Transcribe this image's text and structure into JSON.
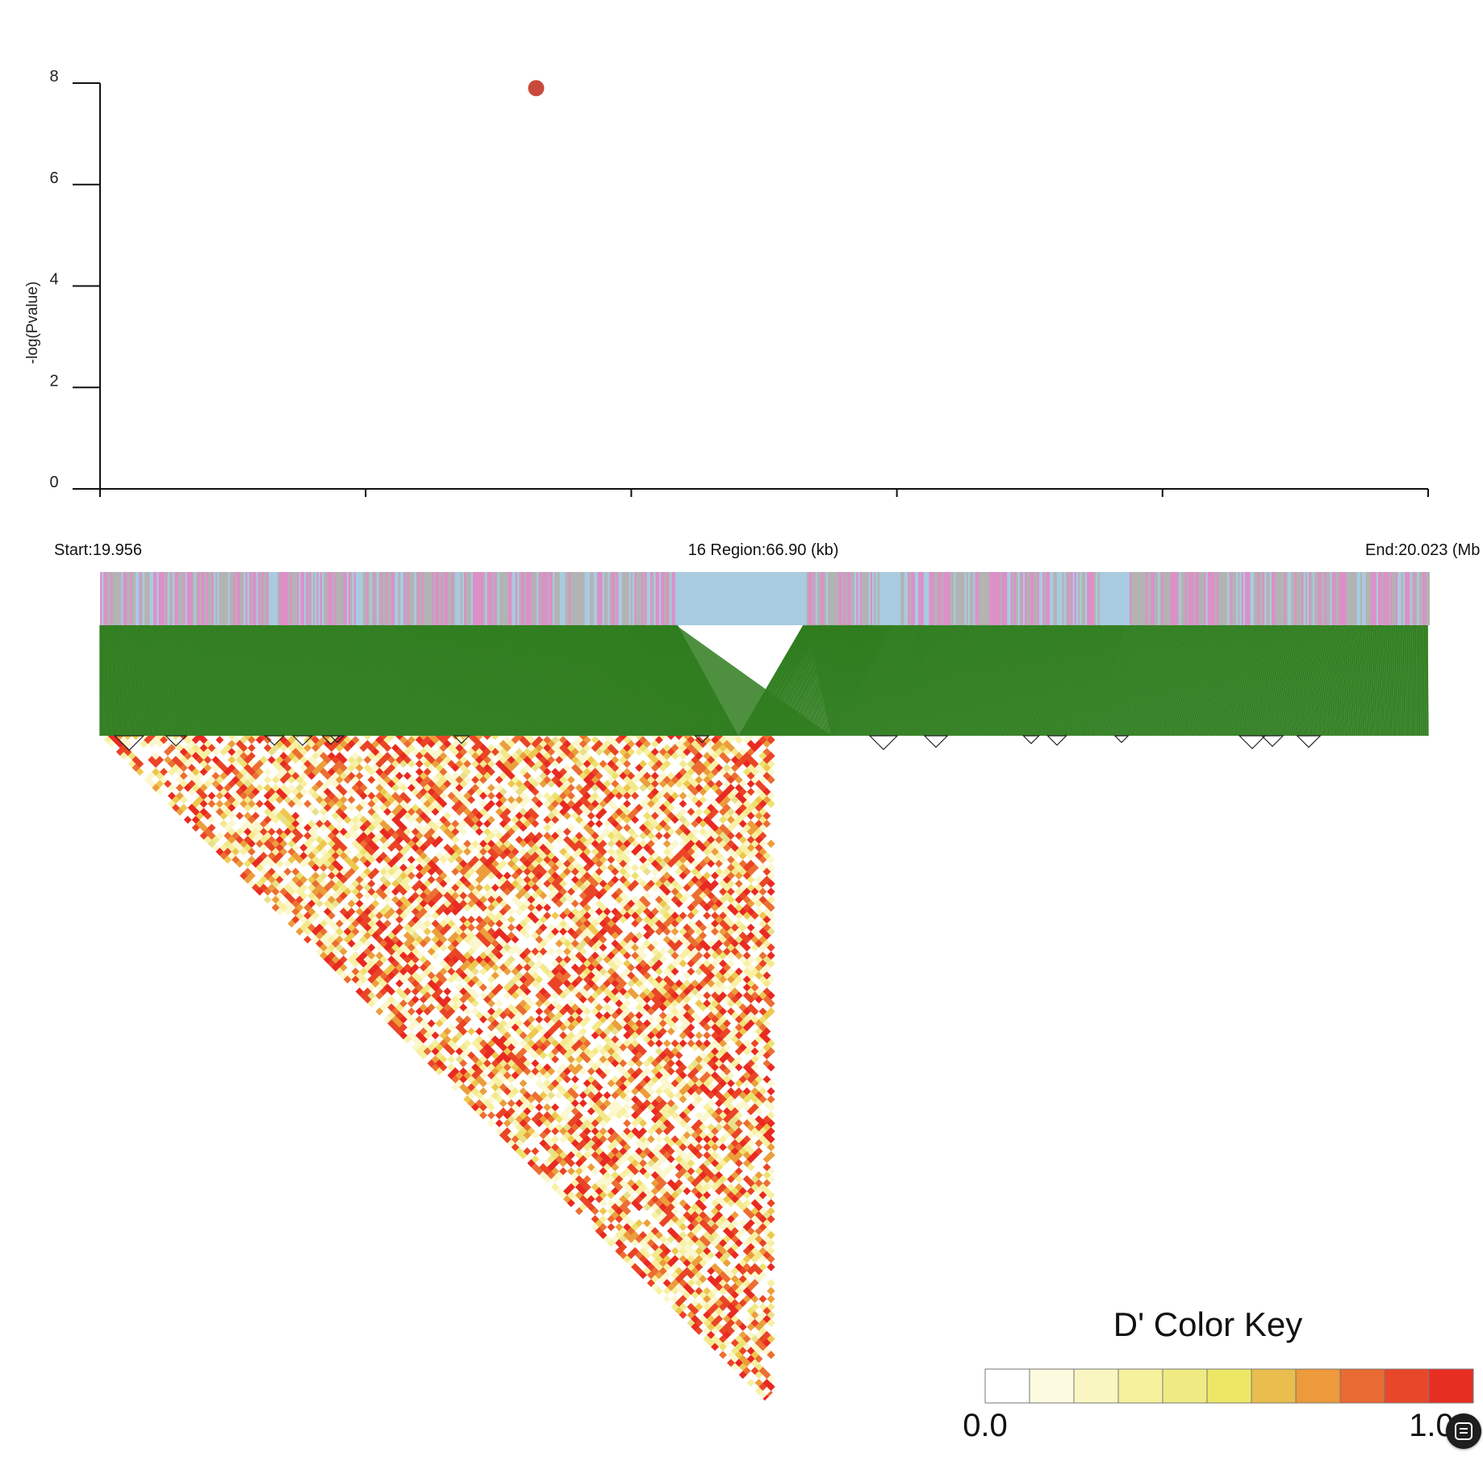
{
  "chart_data": [
    {
      "type": "scatter",
      "ylabel": "-log(Pvalue)",
      "xlabel": "",
      "ylim": [
        0,
        8
      ],
      "yticks": [
        "0",
        "2",
        "4",
        "6",
        "8"
      ],
      "xlim": [
        19.956,
        20.023
      ],
      "x_major_ticks": 6,
      "points": [
        {
          "x": 19.978,
          "y": 7.9
        }
      ],
      "point_color": "#c84a3c",
      "grid": false
    },
    {
      "type": "heatmap",
      "subtype": "LD triangle (D')",
      "start_label": "Start:19.956",
      "region_label": "16 Region:66.90 (kb)",
      "end_label": "End:20.023 (Mb",
      "gene_track_colors": [
        "#a9cbe0",
        "#dd8fc8",
        "#b3b3b3"
      ],
      "snp_link_color": "#2f7d1f",
      "cell_colors": [
        "#ffffff",
        "#fbf7cf",
        "#f8f0a3",
        "#f3e98c",
        "#ede26e",
        "#eec84e",
        "#ec9e3c",
        "#ec6e32",
        "#ea4426",
        "#e82a22",
        "#e8e08a"
      ],
      "color_key": {
        "title": "D' Color Key",
        "min_label": "0.0",
        "max_label": "1.0",
        "colors": [
          "#ffffff",
          "#fcfbdf",
          "#faf6c2",
          "#f5f19d",
          "#efeb82",
          "#ece865",
          "#e9bd4e",
          "#ec9a3b",
          "#ea6a33",
          "#e8472a",
          "#e72e23"
        ]
      }
    }
  ]
}
